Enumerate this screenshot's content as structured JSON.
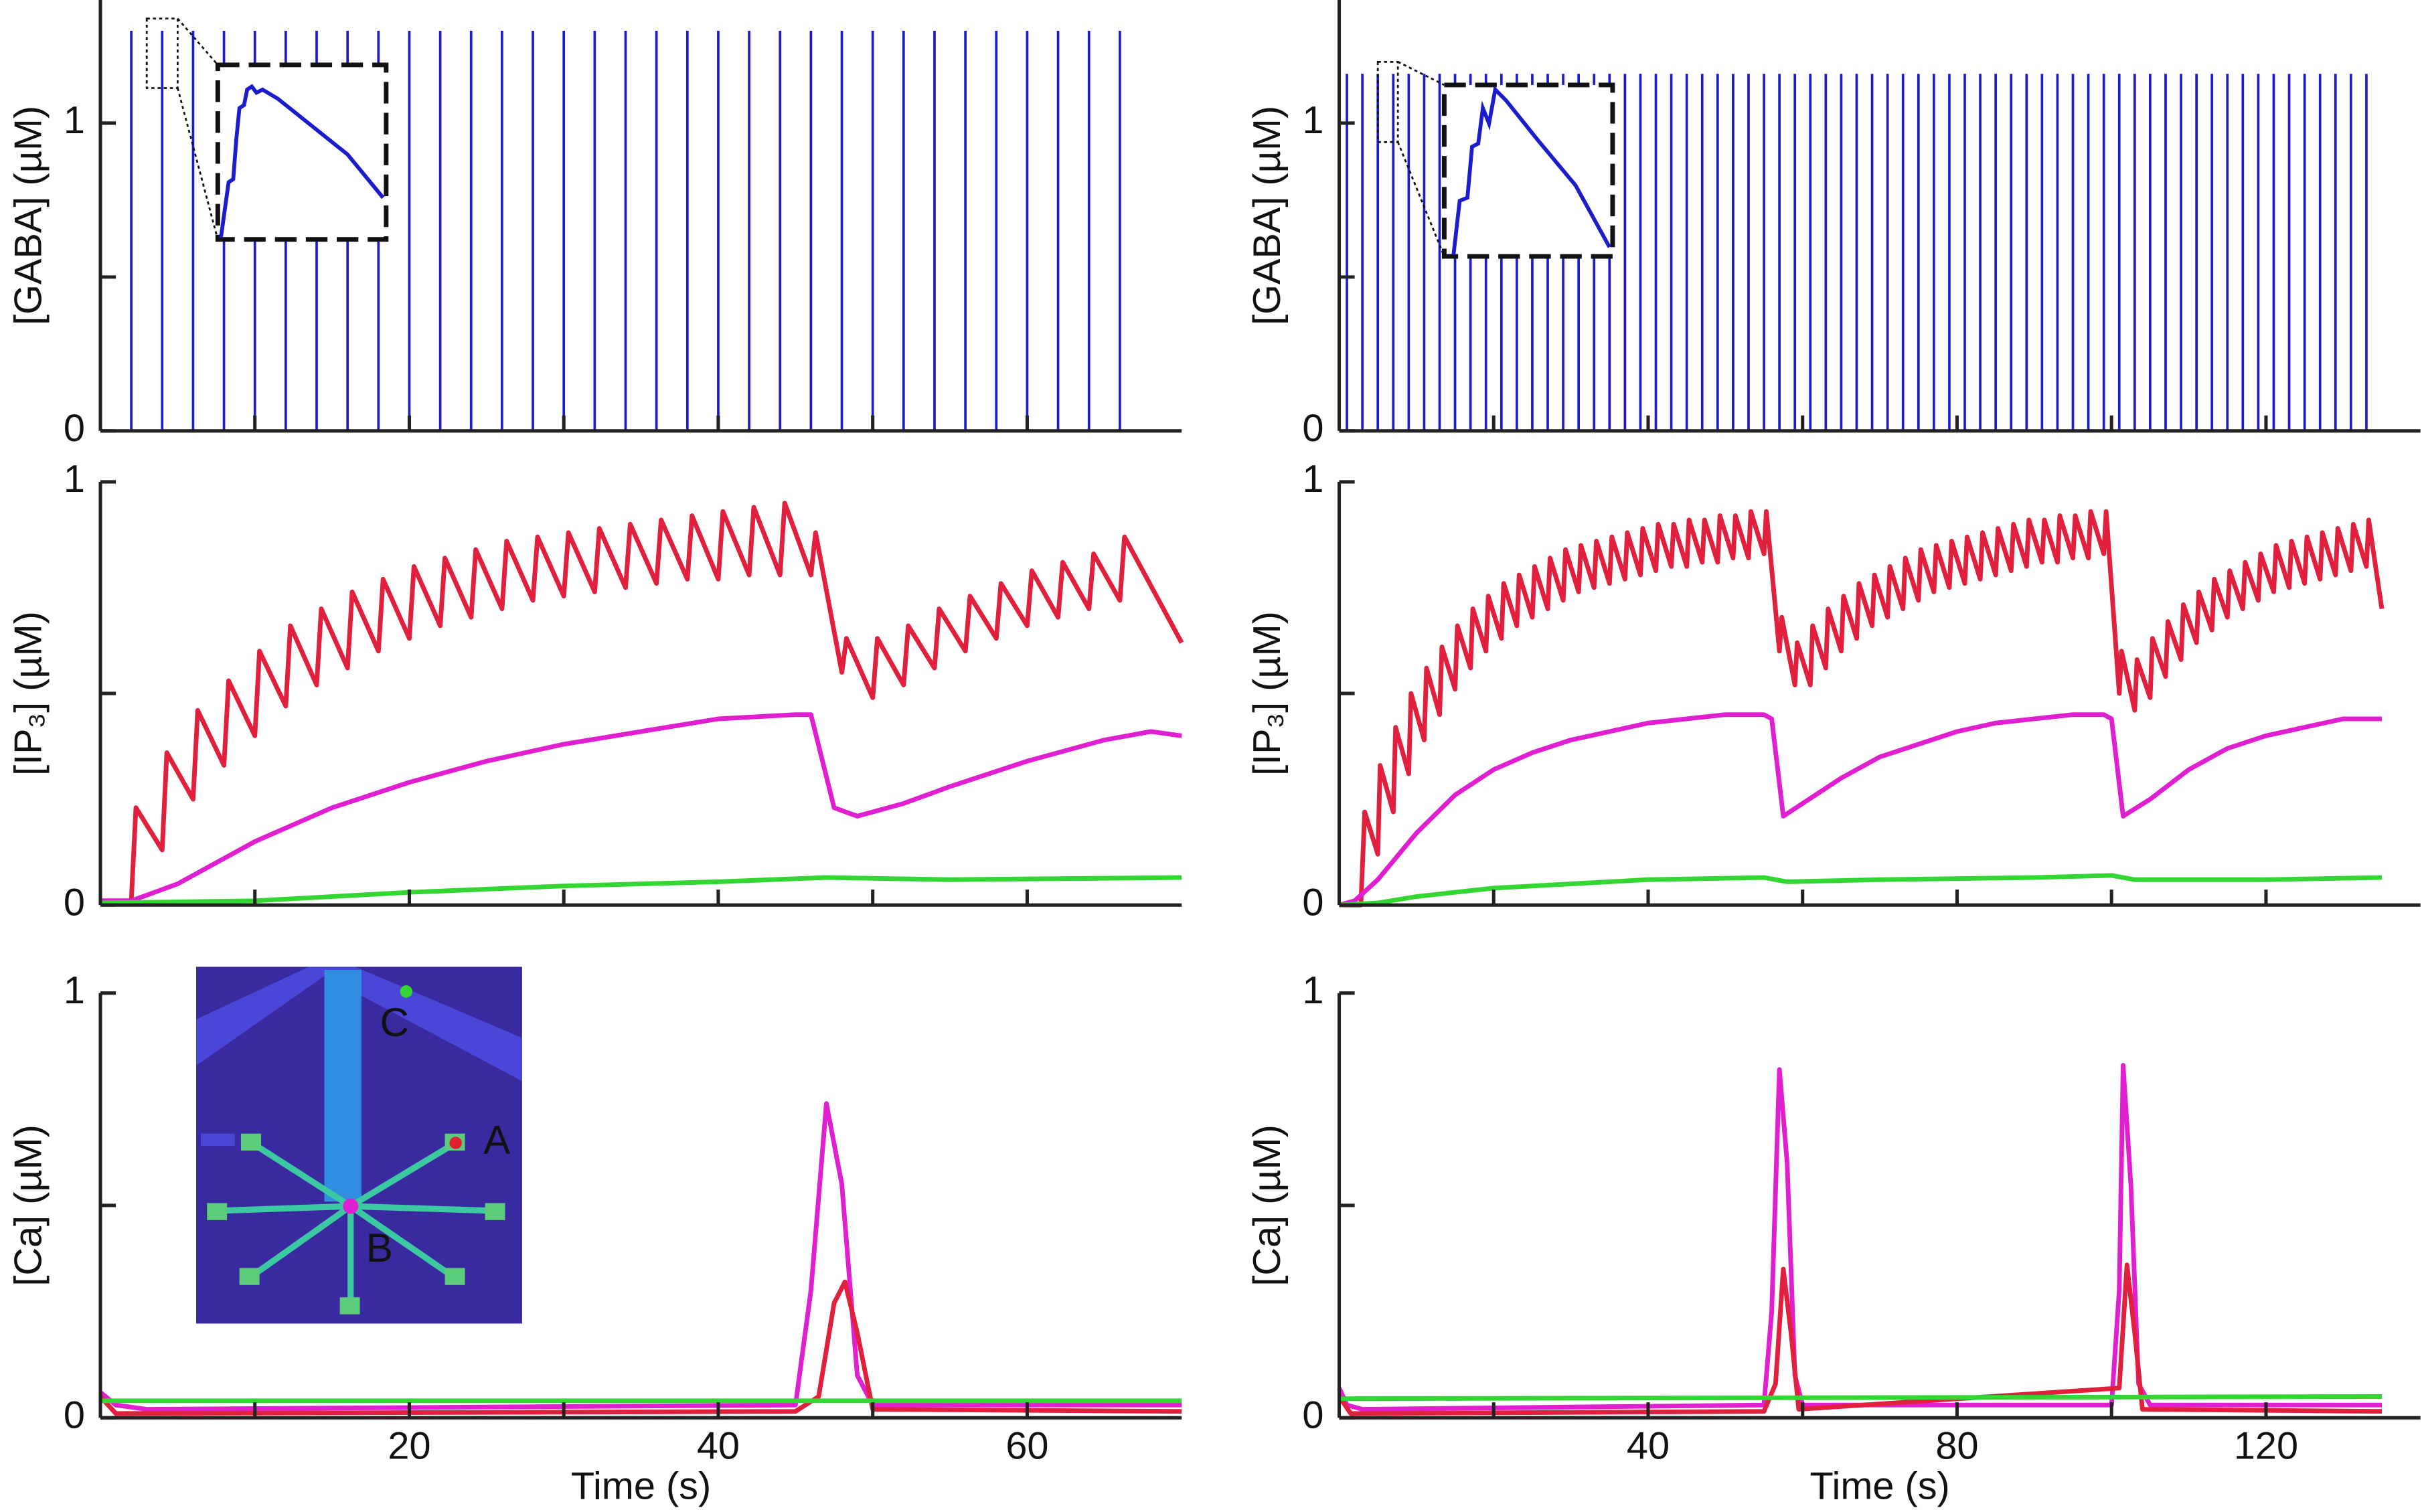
{
  "chart_data": [
    {
      "type": "stem",
      "ylabel": "[GABA] (µM)",
      "xlim": [
        0,
        70
      ],
      "ylim": [
        0,
        1.4
      ],
      "yticks": [
        0,
        1
      ],
      "yminor_ticks": [
        0.5
      ],
      "xminor_ticks": [
        10,
        20,
        30,
        40,
        50,
        60
      ],
      "color": "#1c1ccc",
      "x": [
        2,
        4,
        6,
        8,
        10,
        12,
        14,
        16,
        18,
        20,
        22,
        24,
        26,
        28,
        30,
        32,
        34,
        36,
        38,
        40,
        42,
        44,
        46,
        48,
        50,
        52,
        54,
        56,
        58,
        60,
        62,
        64,
        66
      ],
      "values": [
        1.3,
        1.3,
        1.3,
        1.3,
        1.3,
        1.3,
        1.3,
        1.3,
        1.3,
        1.3,
        1.3,
        1.3,
        1.3,
        1.3,
        1.3,
        1.3,
        1.3,
        1.3,
        1.3,
        1.3,
        1.3,
        1.3,
        1.3,
        1.3,
        1.3,
        1.3,
        1.3,
        1.3,
        1.3,
        1.3,
        1.3,
        1.3,
        1.3
      ]
    },
    {
      "type": "stem",
      "ylabel": "[GABA] (µM)",
      "xlim": [
        0,
        140
      ],
      "ylim": [
        0,
        1.4
      ],
      "yticks": [
        0,
        1
      ],
      "yminor_ticks": [
        0.5
      ],
      "xminor_ticks": [
        20,
        40,
        60,
        80,
        100,
        120
      ],
      "color": "#1c1ccc",
      "x": [
        1,
        3,
        5,
        7,
        9,
        11,
        13,
        15,
        17,
        19,
        21,
        23,
        25,
        27,
        29,
        31,
        33,
        35,
        37,
        39,
        41,
        43,
        45,
        47,
        49,
        51,
        53,
        55,
        57,
        59,
        61,
        63,
        65,
        67,
        69,
        71,
        73,
        75,
        77,
        79,
        81,
        83,
        85,
        87,
        89,
        91,
        93,
        95,
        97,
        99,
        101,
        103,
        105,
        107,
        109,
        111,
        113,
        115,
        117,
        119,
        121,
        123,
        125,
        127,
        129,
        131,
        133
      ],
      "values": [
        1.16,
        1.16,
        1.16,
        1.16,
        1.16,
        1.16,
        1.16,
        1.16,
        1.16,
        1.16,
        1.16,
        1.16,
        1.16,
        1.16,
        1.16,
        1.16,
        1.16,
        1.16,
        1.16,
        1.16,
        1.16,
        1.16,
        1.16,
        1.16,
        1.16,
        1.16,
        1.16,
        1.16,
        1.16,
        1.16,
        1.16,
        1.16,
        1.16,
        1.16,
        1.16,
        1.16,
        1.16,
        1.16,
        1.16,
        1.16,
        1.16,
        1.16,
        1.16,
        1.16,
        1.16,
        1.16,
        1.16,
        1.16,
        1.16,
        1.16,
        1.16,
        1.16,
        1.16,
        1.16,
        1.16,
        1.16,
        1.16,
        1.16,
        1.16,
        1.16,
        1.16,
        1.16,
        1.16,
        1.16,
        1.16,
        1.16,
        1.16
      ]
    },
    {
      "type": "line",
      "ylabel": "[IP₃] (µM)",
      "xlim": [
        0,
        70
      ],
      "ylim": [
        0,
        1
      ],
      "yticks": [
        0,
        1
      ],
      "yminor_ticks": [
        0.5
      ],
      "xminor_ticks": [
        10,
        20,
        30,
        40,
        50,
        60
      ],
      "series": [
        {
          "color": "#e0203c",
          "x": [
            0,
            2,
            2.3,
            4,
            4.3,
            6,
            6.3,
            8,
            8.3,
            10,
            10.3,
            12,
            12.3,
            14,
            14.3,
            16,
            16.3,
            18,
            18.3,
            20,
            20.3,
            22,
            22.3,
            24,
            24.3,
            26,
            26.3,
            28,
            28.3,
            30,
            30.3,
            32,
            32.3,
            34,
            34.3,
            36,
            36.3,
            38,
            38.3,
            40,
            40.3,
            42,
            42.3,
            44,
            44.3,
            46,
            46.3,
            48,
            48.3,
            50,
            50.3,
            52,
            52.3,
            54,
            54.3,
            56,
            56.3,
            58,
            58.3,
            60,
            60.3,
            62,
            62.3,
            64,
            64.3,
            66,
            66.3,
            70
          ],
          "values": [
            0.01,
            0.01,
            0.23,
            0.13,
            0.36,
            0.25,
            0.46,
            0.33,
            0.53,
            0.4,
            0.6,
            0.47,
            0.66,
            0.52,
            0.7,
            0.56,
            0.74,
            0.6,
            0.77,
            0.63,
            0.8,
            0.66,
            0.82,
            0.68,
            0.84,
            0.7,
            0.86,
            0.72,
            0.87,
            0.73,
            0.88,
            0.74,
            0.89,
            0.75,
            0.9,
            0.76,
            0.91,
            0.77,
            0.92,
            0.77,
            0.93,
            0.78,
            0.94,
            0.78,
            0.95,
            0.78,
            0.88,
            0.55,
            0.63,
            0.49,
            0.63,
            0.52,
            0.66,
            0.56,
            0.7,
            0.6,
            0.73,
            0.63,
            0.76,
            0.66,
            0.79,
            0.68,
            0.81,
            0.7,
            0.83,
            0.72,
            0.87,
            0.62
          ]
        },
        {
          "color": "#e020d0",
          "x": [
            0,
            2,
            5,
            10,
            15,
            20,
            25,
            30,
            35,
            40,
            45,
            46,
            47.5,
            49,
            52,
            55,
            60,
            65,
            68,
            70
          ],
          "values": [
            0.01,
            0.01,
            0.05,
            0.15,
            0.23,
            0.29,
            0.34,
            0.38,
            0.41,
            0.44,
            0.45,
            0.45,
            0.23,
            0.21,
            0.24,
            0.28,
            0.34,
            0.39,
            0.41,
            0.4
          ]
        },
        {
          "color": "#33d633",
          "x": [
            0,
            10,
            20,
            30,
            40,
            47,
            55,
            70
          ],
          "values": [
            0.005,
            0.01,
            0.03,
            0.045,
            0.055,
            0.065,
            0.06,
            0.065
          ]
        }
      ]
    },
    {
      "type": "line",
      "ylabel": "[IP₃] (µM)",
      "xlim": [
        0,
        140
      ],
      "ylim": [
        0,
        1
      ],
      "yticks": [
        0,
        1
      ],
      "yminor_ticks": [
        0.5
      ],
      "xminor_ticks": [
        20,
        40,
        60,
        80,
        100,
        120
      ],
      "series": [
        {
          "color": "#e0203c",
          "x": [
            0,
            2.8,
            3.3,
            5,
            5.3,
            7,
            7.3,
            9,
            9.3,
            11,
            11.3,
            13,
            13.3,
            15,
            15.3,
            17,
            17.3,
            19,
            19.3,
            21,
            21.3,
            23,
            23.3,
            25,
            25.3,
            27,
            27.3,
            29,
            29.3,
            31,
            31.3,
            33,
            33.3,
            35,
            35.3,
            37,
            37.3,
            39,
            39.3,
            41,
            41.3,
            43,
            43.3,
            45,
            45.3,
            47,
            47.3,
            49,
            49.3,
            51,
            51.3,
            53,
            53.3,
            55,
            55.3,
            57,
            57.3,
            59,
            59.3,
            61,
            61.3,
            63,
            63.3,
            65,
            65.3,
            67,
            67.3,
            69,
            69.3,
            71,
            71.3,
            73,
            73.3,
            75,
            75.3,
            77,
            77.3,
            79,
            79.3,
            81,
            81.3,
            83,
            83.3,
            85,
            85.3,
            87,
            87.3,
            89,
            89.3,
            91,
            91.3,
            93,
            93.3,
            95,
            95.3,
            97,
            97.3,
            99,
            99.3,
            101,
            101.3,
            103,
            103.3,
            105,
            105.3,
            107,
            107.3,
            109,
            109.3,
            111,
            111.3,
            113,
            113.3,
            115,
            115.3,
            117,
            117.3,
            119,
            119.3,
            121,
            121.3,
            123,
            123.3,
            125,
            125.3,
            127,
            127.3,
            129,
            129.3,
            131,
            131.3,
            133,
            133.3,
            135
          ],
          "values": [
            0,
            0,
            0.22,
            0.12,
            0.33,
            0.22,
            0.42,
            0.31,
            0.5,
            0.39,
            0.56,
            0.45,
            0.61,
            0.51,
            0.66,
            0.56,
            0.7,
            0.6,
            0.73,
            0.63,
            0.76,
            0.66,
            0.78,
            0.68,
            0.8,
            0.7,
            0.82,
            0.72,
            0.84,
            0.74,
            0.85,
            0.75,
            0.86,
            0.76,
            0.87,
            0.77,
            0.88,
            0.78,
            0.89,
            0.79,
            0.9,
            0.8,
            0.9,
            0.8,
            0.91,
            0.81,
            0.91,
            0.81,
            0.92,
            0.82,
            0.92,
            0.82,
            0.93,
            0.83,
            0.93,
            0.6,
            0.68,
            0.52,
            0.62,
            0.52,
            0.66,
            0.56,
            0.7,
            0.6,
            0.73,
            0.63,
            0.76,
            0.66,
            0.78,
            0.68,
            0.8,
            0.7,
            0.82,
            0.72,
            0.84,
            0.74,
            0.85,
            0.75,
            0.86,
            0.76,
            0.87,
            0.77,
            0.88,
            0.78,
            0.89,
            0.79,
            0.9,
            0.8,
            0.91,
            0.81,
            0.91,
            0.81,
            0.92,
            0.82,
            0.92,
            0.82,
            0.93,
            0.83,
            0.93,
            0.5,
            0.6,
            0.46,
            0.58,
            0.49,
            0.63,
            0.54,
            0.67,
            0.58,
            0.71,
            0.62,
            0.74,
            0.65,
            0.77,
            0.68,
            0.79,
            0.7,
            0.81,
            0.72,
            0.83,
            0.74,
            0.85,
            0.75,
            0.86,
            0.76,
            0.87,
            0.77,
            0.88,
            0.78,
            0.89,
            0.79,
            0.9,
            0.8,
            0.91,
            0.7
          ]
        },
        {
          "color": "#e020d0",
          "x": [
            0,
            2,
            5,
            10,
            15,
            20,
            25,
            30,
            35,
            40,
            45,
            50,
            55,
            56,
            57.5,
            60,
            65,
            70,
            75,
            80,
            85,
            90,
            95,
            99,
            100,
            101.5,
            105,
            110,
            115,
            120,
            125,
            130,
            135
          ],
          "values": [
            0,
            0.01,
            0.06,
            0.17,
            0.26,
            0.32,
            0.36,
            0.39,
            0.41,
            0.43,
            0.44,
            0.45,
            0.45,
            0.44,
            0.21,
            0.24,
            0.3,
            0.35,
            0.38,
            0.41,
            0.43,
            0.44,
            0.45,
            0.45,
            0.44,
            0.21,
            0.25,
            0.32,
            0.37,
            0.4,
            0.42,
            0.44,
            0.44
          ]
        },
        {
          "color": "#33d633",
          "x": [
            0,
            5,
            10,
            20,
            30,
            40,
            55,
            58,
            70,
            90,
            100,
            103,
            120,
            135
          ],
          "values": [
            0,
            0.005,
            0.02,
            0.04,
            0.05,
            0.06,
            0.065,
            0.055,
            0.06,
            0.065,
            0.07,
            0.06,
            0.06,
            0.065
          ]
        }
      ]
    },
    {
      "type": "line",
      "ylabel": "[Ca] (µM)",
      "xlabel": "Time (s)",
      "xlim": [
        0,
        70
      ],
      "ylim": [
        0,
        1
      ],
      "yticks": [
        0,
        1
      ],
      "yminor_ticks": [
        0.5
      ],
      "xticks": [
        20,
        40,
        60
      ],
      "xminor_ticks": [
        10,
        30,
        50
      ],
      "annotations": [
        {
          "text": "A",
          "color": "#e02030"
        },
        {
          "text": "B",
          "color": "#e020d0"
        },
        {
          "text": "C",
          "color": "#33d633"
        }
      ],
      "series": [
        {
          "color": "#e020d0",
          "x": [
            0,
            1,
            3,
            45,
            46,
            47,
            48,
            49,
            50,
            70
          ],
          "values": [
            0.06,
            0.03,
            0.02,
            0.03,
            0.3,
            0.74,
            0.55,
            0.1,
            0.03,
            0.03
          ]
        },
        {
          "color": "#e0203c",
          "x": [
            0,
            1,
            45,
            46.5,
            47.5,
            48.2,
            49,
            50,
            70
          ],
          "values": [
            0.05,
            0.01,
            0.015,
            0.05,
            0.27,
            0.32,
            0.2,
            0.02,
            0.015
          ]
        },
        {
          "color": "#33d633",
          "x": [
            0,
            70
          ],
          "values": [
            0.04,
            0.04
          ]
        }
      ]
    },
    {
      "type": "line",
      "ylabel": "[Ca] (µM)",
      "xlabel": "Time (s)",
      "xlim": [
        0,
        140
      ],
      "ylim": [
        0,
        1
      ],
      "yticks": [
        0,
        1
      ],
      "yminor_ticks": [
        0.5
      ],
      "xticks": [
        40,
        80,
        120
      ],
      "xminor_ticks": [
        20,
        60,
        100
      ],
      "series": [
        {
          "color": "#e020d0",
          "x": [
            0,
            1,
            3,
            55,
            56,
            57,
            58,
            59,
            60,
            100,
            101,
            101.5,
            102.5,
            103.5,
            105,
            135
          ],
          "values": [
            0.07,
            0.03,
            0.02,
            0.03,
            0.25,
            0.82,
            0.6,
            0.1,
            0.03,
            0.03,
            0.3,
            0.83,
            0.55,
            0.08,
            0.03,
            0.03
          ]
        },
        {
          "color": "#e0203c",
          "x": [
            0,
            1.5,
            55,
            56.5,
            57.5,
            58.5,
            59.5,
            101,
            102,
            103,
            104,
            135
          ],
          "values": [
            0.05,
            0.01,
            0.015,
            0.08,
            0.35,
            0.2,
            0.02,
            0.07,
            0.36,
            0.2,
            0.02,
            0.015
          ]
        },
        {
          "color": "#33d633",
          "x": [
            0,
            135
          ],
          "values": [
            0.045,
            0.05
          ]
        }
      ]
    }
  ]
}
